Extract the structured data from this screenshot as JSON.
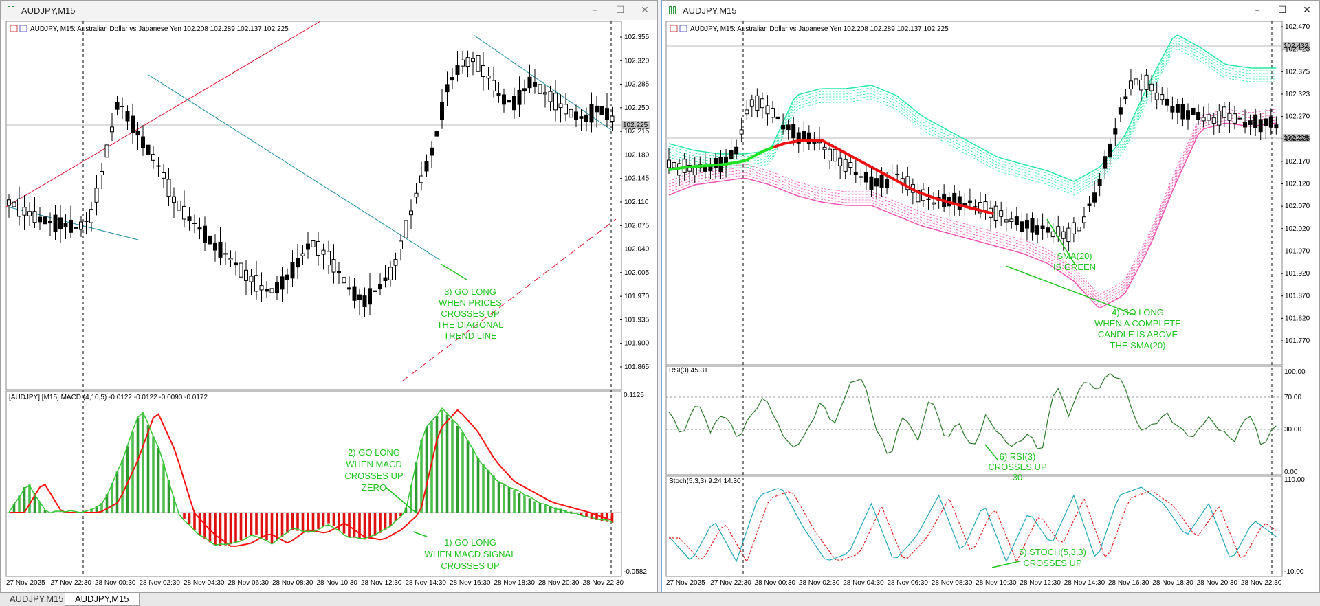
{
  "left_window": {
    "title": "AUDJPY,M15",
    "header": "AUDJPY, M15:  Australian Dollar vs Japanese Yen  102.208 102.289 102.137 102.225",
    "price_axis": [
      "102.355",
      "102.320",
      "102.285",
      "102.250",
      "102.215",
      "102.180",
      "102.145",
      "102.110",
      "102.075",
      "102.040",
      "102.005",
      "101.970",
      "101.935",
      "101.900",
      "101.865"
    ],
    "current_price": "102.225",
    "macd_header": "[AUDJPY] [M15] MACD (4,10,5) -0.0122 -0.0122 -0.0090 -0.0172",
    "macd_axis": [
      "0.1125",
      "-0.0582"
    ],
    "time_axis": [
      "27 Nov 2025",
      "27 Nov 22:30",
      "28 Nov 00:30",
      "28 Nov 02:30",
      "28 Nov 04:30",
      "28 Nov 06:30",
      "28 Nov 08:30",
      "28 Nov 10:30",
      "28 Nov 12:30",
      "28 Nov 14:30",
      "28 Nov 16:30",
      "28 Nov 18:30",
      "28 Nov 20:30",
      "28 Nov 22:30"
    ],
    "annotations": {
      "note3": [
        "3) GO LONG",
        "WHEN PRICES",
        "CROSSES UP",
        "THE DIAGONAL",
        "TREND LINE"
      ],
      "note2": [
        "2) GO LONG",
        "WHEN MACD",
        "CROSSES UP",
        "ZERO"
      ],
      "note1": [
        "1) GO LONG",
        "WHEN MACD SIGNAL",
        "CROSSES UP"
      ]
    }
  },
  "right_window": {
    "title": "AUDJPY,M15",
    "header": "AUDJPY, M15:  Australian Dollar vs Japanese Yen  102.208 102.289 102.137 102.225",
    "price_axis": [
      "102.470",
      "102.423",
      "102.375",
      "102.323",
      "102.270",
      "102.225",
      "102.170",
      "102.120",
      "102.070",
      "102.020",
      "101.970",
      "101.920",
      "101.870",
      "101.820",
      "101.770"
    ],
    "current_price": "102.225",
    "ref_price": "102.432",
    "rsi_header": "RSI(3) 45.31",
    "rsi_axis": [
      "100.00",
      "70.00",
      "30.00",
      "0.00"
    ],
    "stoch_header": "Stoch(5,3,3) 9.24 14.30",
    "stoch_axis": [
      "110.00",
      "-10.00"
    ],
    "time_axis": [
      "27 Nov 2025",
      "27 Nov 22:30",
      "28 Nov 00:30",
      "28 Nov 02:30",
      "28 Nov 04:30",
      "28 Nov 06:30",
      "28 Nov 08:30",
      "28 Nov 10:30",
      "28 Nov 12:30",
      "28 Nov 14:30",
      "28 Nov 16:30",
      "28 Nov 18:30",
      "28 Nov 20:30",
      "28 Nov 22:30"
    ],
    "annotations": {
      "sma": [
        "SMA(20)",
        "IS  GREEN"
      ],
      "note4": [
        "4) GO LONG",
        "WHEN A COMPLETE",
        "CANDLE  IS ABOVE",
        "THE  SMA(20)"
      ],
      "note6": [
        "6) RSI(3)",
        "CROSSES  UP",
        "30"
      ],
      "note5": [
        "5) STOCH(5,3,3)",
        "CROSSES  UP"
      ]
    }
  },
  "tabs": [
    "AUDJPY,M15",
    "AUDJPY,M15"
  ],
  "active_tab": 1,
  "colors": {
    "up": "#ffffff",
    "down": "#000000",
    "macd_up": "#2f9a2f",
    "macd_down": "#e01010",
    "signal": "#ff1010",
    "note": "#1ec31e",
    "trend_red": "#e01030",
    "trend_blue": "#1a8fa0"
  }
}
